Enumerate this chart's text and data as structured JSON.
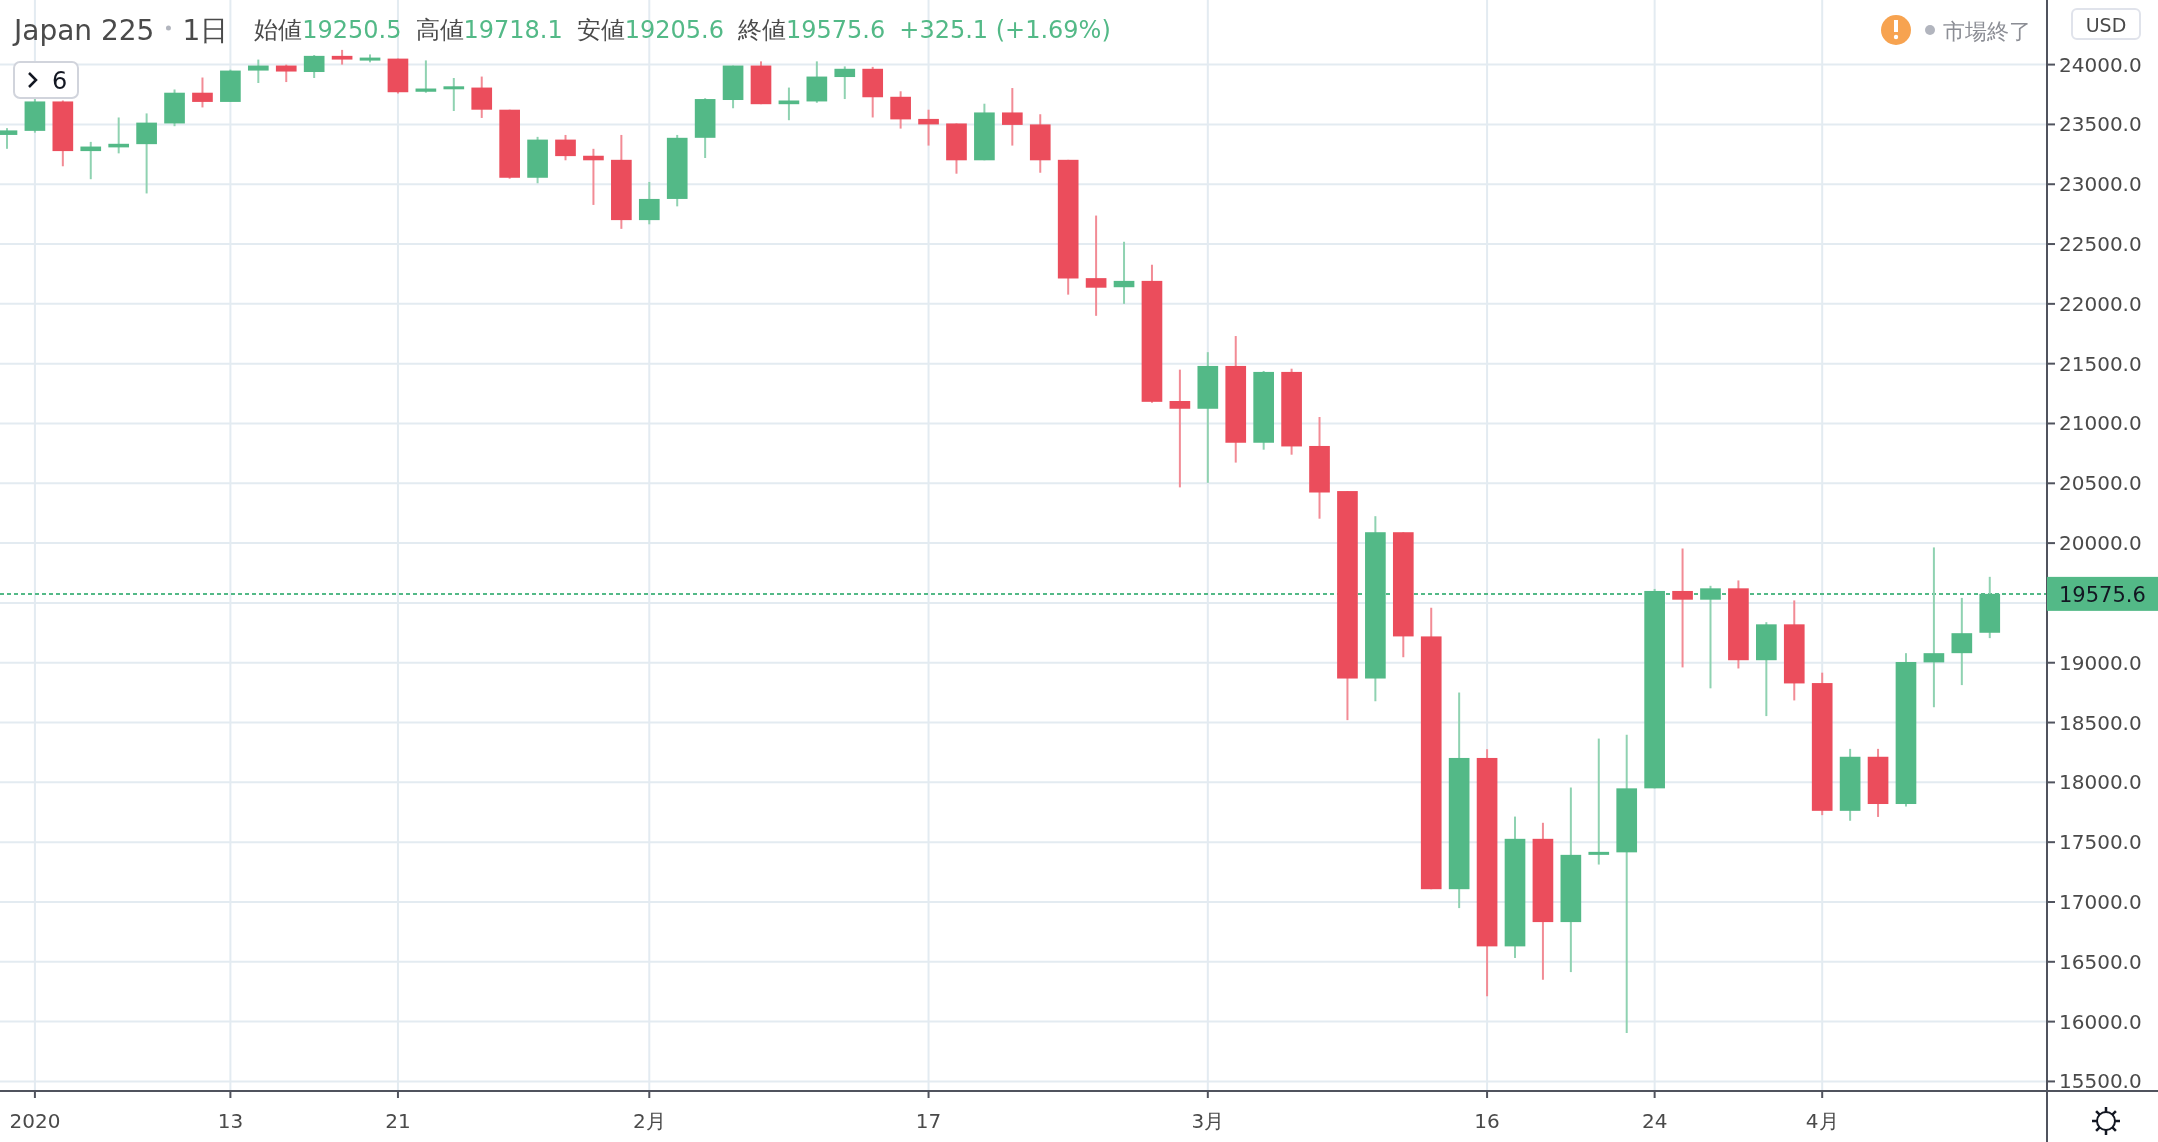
{
  "chart_data": {
    "type": "candlestick",
    "title": "Japan 225",
    "subtitle": "1日",
    "annotations": [
      "始値",
      "19250.5",
      "高値",
      "19718.1",
      "安値",
      "19205.6",
      "終値",
      "19575.6",
      "+325.1 (+1.69%)",
      "市場終了",
      "USD",
      "6"
    ],
    "categories": [
      null,
      "2020",
      null,
      null,
      null,
      null,
      null,
      null,
      "13",
      null,
      null,
      null,
      null,
      null,
      "21",
      null,
      null,
      null,
      null,
      null,
      null,
      null,
      null,
      "2月",
      null,
      null,
      null,
      null,
      null,
      null,
      null,
      null,
      null,
      "17",
      null,
      null,
      null,
      null,
      null,
      null,
      null,
      null,
      null,
      "3月",
      null,
      null,
      null,
      null,
      null,
      null,
      null,
      null,
      null,
      "16",
      null,
      null,
      null,
      null,
      null,
      "24",
      null,
      null,
      null,
      null,
      null,
      "4月",
      null,
      null,
      null,
      null,
      null,
      null
    ],
    "ohlc": [
      [
        23412,
        23469,
        23296,
        23450
      ],
      [
        23446,
        23712,
        23431,
        23692
      ],
      [
        23692,
        23700,
        23150,
        23277
      ],
      [
        23277,
        23354,
        23042,
        23315
      ],
      [
        23308,
        23558,
        23258,
        23338
      ],
      [
        23335,
        23592,
        22923,
        23515
      ],
      [
        23508,
        23792,
        23485,
        23765
      ],
      [
        23765,
        23892,
        23642,
        23688
      ],
      [
        23688,
        23958,
        23688,
        23950
      ],
      [
        23950,
        24042,
        23846,
        23992
      ],
      [
        23992,
        24000,
        23854,
        23942
      ],
      [
        23938,
        24080,
        23888,
        24073
      ],
      [
        24073,
        24123,
        24000,
        24042
      ],
      [
        24042,
        24085,
        24019,
        24050
      ],
      [
        24050,
        24050,
        23758,
        23769
      ],
      [
        23773,
        24035,
        23765,
        23800
      ],
      [
        23800,
        23888,
        23612,
        23812
      ],
      [
        23808,
        23900,
        23554,
        23623
      ],
      [
        23623,
        23623,
        23046,
        23054
      ],
      [
        23054,
        23396,
        23008,
        23373
      ],
      [
        23373,
        23412,
        23200,
        23235
      ],
      [
        23238,
        23296,
        22827,
        23200
      ],
      [
        23204,
        23412,
        22627,
        22700
      ],
      [
        22700,
        23019,
        22665,
        22877
      ],
      [
        22877,
        23412,
        22815,
        23388
      ],
      [
        23388,
        23719,
        23219,
        23712
      ],
      [
        23704,
        23992,
        23635,
        23992
      ],
      [
        23992,
        24027,
        23669,
        23669
      ],
      [
        23669,
        23808,
        23535,
        23700
      ],
      [
        23692,
        24027,
        23681,
        23900
      ],
      [
        23896,
        23985,
        23712,
        23965
      ],
      [
        23965,
        23981,
        23558,
        23727
      ],
      [
        23731,
        23777,
        23465,
        23542
      ],
      [
        23546,
        23623,
        23323,
        23500
      ],
      [
        23508,
        23508,
        23088,
        23200
      ],
      [
        23200,
        23673,
        23200,
        23600
      ],
      [
        23600,
        23804,
        23323,
        23496
      ],
      [
        23500,
        23585,
        23096,
        23200
      ],
      [
        23204,
        23204,
        22077,
        22212
      ],
      [
        22215,
        22738,
        21900,
        22135
      ],
      [
        22139,
        22519,
        22000,
        22192
      ],
      [
        22192,
        22327,
        21173,
        21181
      ],
      [
        21188,
        21450,
        20466,
        21123
      ],
      [
        21123,
        21596,
        20504,
        21481
      ],
      [
        21481,
        21731,
        20673,
        20839
      ],
      [
        20839,
        21439,
        20781,
        21431
      ],
      [
        21431,
        21458,
        20739,
        20808
      ],
      [
        20812,
        21054,
        20204,
        20423
      ],
      [
        20435,
        20435,
        18520,
        18868
      ],
      [
        18868,
        20225,
        18678,
        20091
      ],
      [
        20091,
        20091,
        19046,
        19220
      ],
      [
        19220,
        19459,
        17107,
        17107
      ],
      [
        17107,
        18751,
        16949,
        18204
      ],
      [
        18204,
        18277,
        16212,
        16629
      ],
      [
        16629,
        17714,
        16532,
        17528
      ],
      [
        17528,
        17662,
        16350,
        16832
      ],
      [
        16832,
        17957,
        16414,
        17394
      ],
      [
        17394,
        18366,
        17313,
        17419
      ],
      [
        17415,
        18398,
        15904,
        17950
      ],
      [
        17950,
        19617,
        17950,
        19600
      ],
      [
        19600,
        19955,
        18961,
        19527
      ],
      [
        19527,
        19643,
        18786,
        19622
      ],
      [
        19622,
        19688,
        18952,
        19021
      ],
      [
        19021,
        19339,
        18554,
        19321
      ],
      [
        19321,
        19521,
        18685,
        18827
      ],
      [
        18830,
        18917,
        17726,
        17762
      ],
      [
        17762,
        18280,
        17679,
        18214
      ],
      [
        18214,
        18280,
        17711,
        17819
      ],
      [
        17819,
        19080,
        17798,
        19006
      ],
      [
        19003,
        19964,
        18628,
        19080
      ],
      [
        19080,
        19542,
        18813,
        19247
      ],
      [
        19250.5,
        19718.1,
        19205.6,
        19575.6
      ]
    ],
    "colors": [
      "#53b987",
      "#53b987",
      "#eb4d5c",
      "#53b987",
      "#53b987",
      "#53b987",
      "#53b987",
      "#eb4d5c",
      "#53b987",
      "#53b987",
      "#eb4d5c",
      "#53b987",
      "#eb4d5c",
      "#53b987",
      "#eb4d5c",
      "#53b987",
      "#53b987",
      "#eb4d5c",
      "#eb4d5c",
      "#53b987",
      "#eb4d5c",
      "#eb4d5c",
      "#eb4d5c",
      "#53b987",
      "#53b987",
      "#53b987",
      "#53b987",
      "#eb4d5c",
      "#53b987",
      "#53b987",
      "#53b987",
      "#eb4d5c",
      "#eb4d5c",
      "#eb4d5c",
      "#eb4d5c",
      "#53b987",
      "#eb4d5c",
      "#eb4d5c",
      "#eb4d5c",
      "#eb4d5c",
      "#53b987",
      "#eb4d5c",
      "#eb4d5c",
      "#53b987",
      "#eb4d5c",
      "#53b987",
      "#eb4d5c",
      "#eb4d5c",
      "#eb4d5c",
      "#53b987",
      "#eb4d5c",
      "#eb4d5c",
      "#53b987",
      "#eb4d5c",
      "#53b987",
      "#eb4d5c",
      "#53b987",
      "#53b987",
      "#53b987",
      "#53b987",
      "#eb4d5c",
      "#53b987",
      "#eb4d5c",
      "#53b987",
      "#eb4d5c",
      "#eb4d5c",
      "#53b987",
      "#eb4d5c",
      "#53b987",
      "#53b987",
      "#53b987",
      "#53b987"
    ],
    "ylim": [
      15420,
      24540
    ],
    "yticks": [
      {
        "value": 15500,
        "label": "15500.0"
      },
      {
        "value": 16000,
        "label": "16000.0"
      },
      {
        "value": 16500,
        "label": "16500.0"
      },
      {
        "value": 17000,
        "label": "17000.0"
      },
      {
        "value": 17500,
        "label": "17500.0"
      },
      {
        "value": 18000,
        "label": "18000.0"
      },
      {
        "value": 18500,
        "label": "18500.0"
      },
      {
        "value": 19000,
        "label": "19000.0"
      },
      {
        "value": 19500,
        "label": null
      },
      {
        "value": 20000,
        "label": "20000.0"
      },
      {
        "value": 20500,
        "label": "20500.0"
      },
      {
        "value": 21000,
        "label": "21000.0"
      },
      {
        "value": 21500,
        "label": "21500.0"
      },
      {
        "value": 22000,
        "label": "22000.0"
      },
      {
        "value": 22500,
        "label": "22500.0"
      },
      {
        "value": 23000,
        "label": "23000.0"
      },
      {
        "value": 23500,
        "label": "23500.0"
      },
      {
        "value": 24000,
        "label": "24000.0"
      }
    ],
    "grid": true,
    "ref_lines": [
      {
        "axis": "y",
        "value": 19575.6,
        "label": "19575.6",
        "color": "#53b987",
        "line_style": "dotted"
      }
    ]
  }
}
